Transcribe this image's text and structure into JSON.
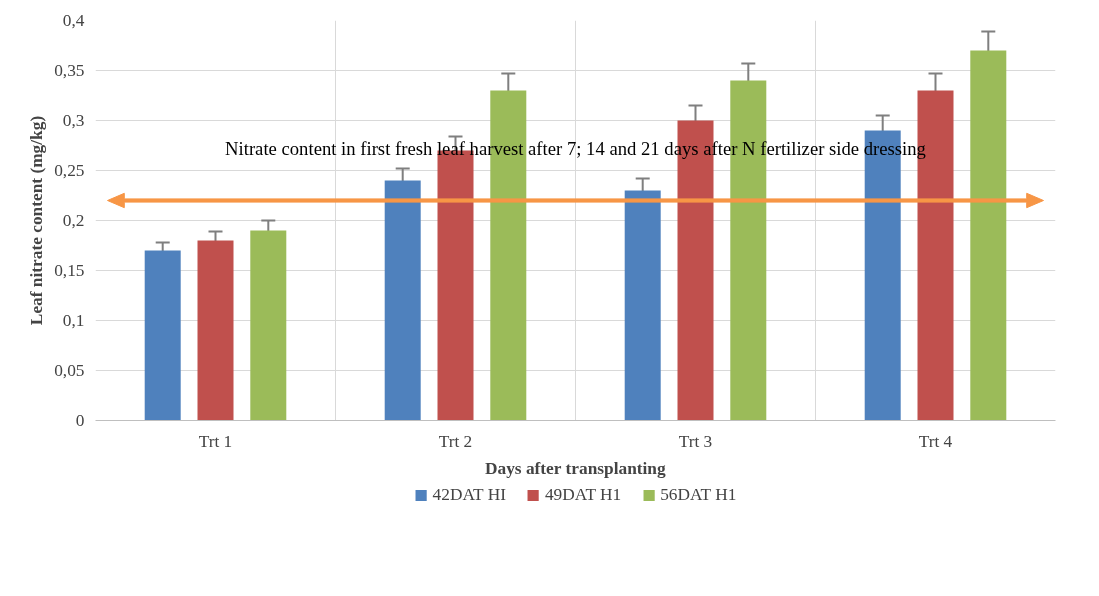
{
  "chart_data": {
    "type": "bar",
    "xlabel": "Days after transplanting",
    "ylabel": "Leaf nitrate content (mg/kg)",
    "categories": [
      "Trt 1",
      "Trt 2",
      "Trt 3",
      "Trt 4"
    ],
    "series": [
      {
        "name": "42DAT HI",
        "color": "#4f81bd",
        "values": [
          0.17,
          0.24,
          0.23,
          0.29
        ],
        "errors": [
          0.008,
          0.012,
          0.012,
          0.015
        ]
      },
      {
        "name": "49DAT H1",
        "color": "#c0504d",
        "values": [
          0.18,
          0.27,
          0.3,
          0.33
        ],
        "errors": [
          0.009,
          0.014,
          0.015,
          0.017
        ]
      },
      {
        "name": "56DAT H1",
        "color": "#9bbb59",
        "values": [
          0.19,
          0.33,
          0.34,
          0.37
        ],
        "errors": [
          0.01,
          0.017,
          0.017,
          0.019
        ]
      }
    ],
    "ylim": [
      0,
      0.4
    ],
    "yticks": [
      0,
      {
        "value": 0.05,
        "label": "0,05"
      },
      {
        "value": 0.1,
        "label": "0,1"
      },
      {
        "value": 0.15,
        "label": "0,15"
      },
      {
        "value": 0.2,
        "label": "0,2"
      },
      {
        "value": 0.25,
        "label": "0,25"
      },
      {
        "value": 0.3,
        "label": "0,3"
      },
      {
        "value": 0.35,
        "label": "0,35"
      },
      {
        "value": 0.4,
        "label": "0,4"
      }
    ],
    "ref_lines": [
      {
        "axis": "y",
        "value": 0.22,
        "label": "Nitrate content in first fresh leaf harvest after 7; 14 and 21 days after N fertilizer side dressing",
        "color": "#f79646"
      }
    ],
    "grid": true,
    "legend": "bottom"
  }
}
